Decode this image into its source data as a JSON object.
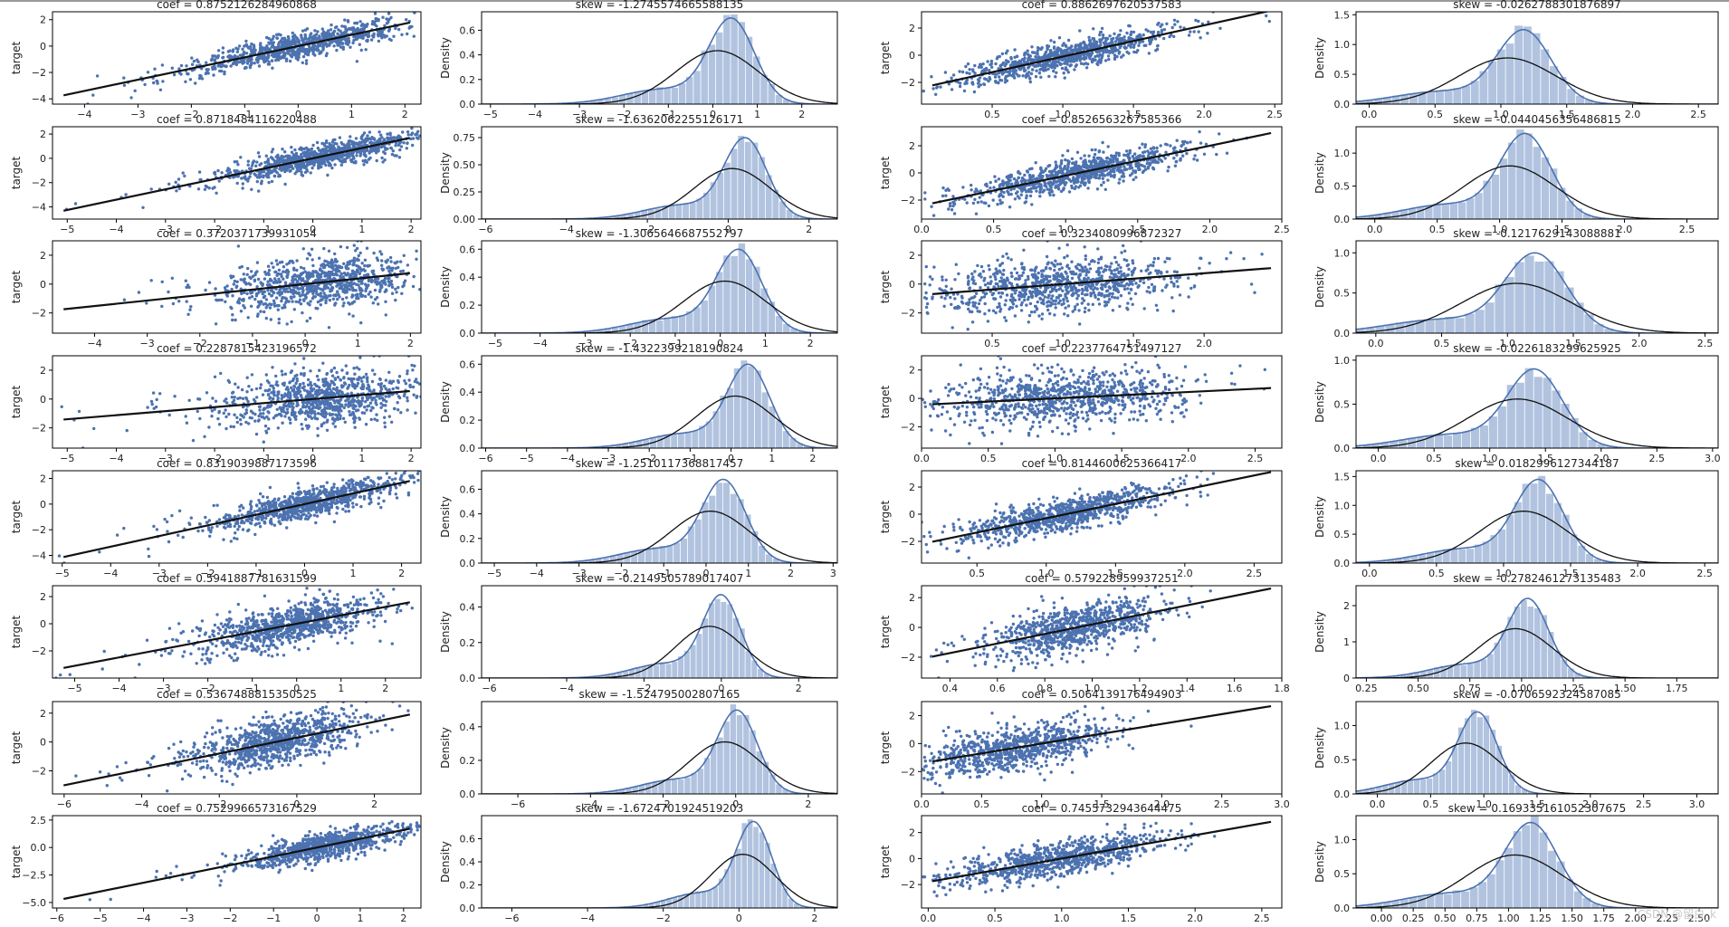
{
  "colors": {
    "scatter": "#4c72b0",
    "hist": "#a9bcdb",
    "kde": "#4c72b0",
    "line": "#111111",
    "axis": "#000000"
  },
  "ylabel_scatter": "target",
  "ylabel_dist": "Density",
  "watermark": "CSDN @留白_k",
  "chart_data": [
    {
      "type": "scatter",
      "title": "coef = 0.8752126284960868",
      "xlim": [
        -4.6,
        2.3
      ],
      "ylim": [
        -4.4,
        2.6
      ],
      "xticks": [
        -4,
        -3,
        -2,
        -1,
        0,
        1,
        2
      ],
      "yticks": [
        -4,
        -2,
        0,
        2
      ],
      "xmean": 0.1,
      "xsd": 1.0,
      "slope": 0.85,
      "intercept": 0,
      "noise": 0.5,
      "grid": false
    },
    {
      "type": "distribution",
      "title": "skew = -1.2745574665588135",
      "xlim": [
        -5.2,
        2.8
      ],
      "ylim": [
        0,
        0.75
      ],
      "xticks": [
        -5,
        -4,
        -3,
        -2,
        -1,
        0,
        1,
        2
      ],
      "yticks": [
        0,
        0.2,
        0.4,
        0.6
      ],
      "mu": 0.1,
      "sd": 0.93,
      "peak": 0.7,
      "grid": false
    },
    {
      "type": "scatter",
      "title": "coef = 0.8862697620537583",
      "xlim": [
        0.0,
        2.55
      ],
      "ylim": [
        -3.6,
        3.2
      ],
      "xticks": [
        0.5,
        1.0,
        1.5,
        2.0,
        2.5
      ],
      "yticks": [
        -2,
        0,
        2
      ],
      "xmean": 1.05,
      "xsd": 0.37,
      "slope": 2.3,
      "intercept": -2.4,
      "noise": 0.5,
      "grid": false
    },
    {
      "type": "distribution",
      "title": "skew = -0.0262788301876897",
      "xlim": [
        -0.1,
        2.65
      ],
      "ylim": [
        0,
        1.55
      ],
      "xticks": [
        0.0,
        0.5,
        1.0,
        1.5,
        2.0,
        2.5
      ],
      "yticks": [
        0,
        0.5,
        1.0,
        1.5
      ],
      "mu": 1.05,
      "sd": 0.37,
      "peak": 1.25,
      "grid": false
    },
    {
      "type": "scatter",
      "title": "coef = 0.8718484116220488",
      "xlim": [
        -5.3,
        2.2
      ],
      "ylim": [
        -5.0,
        2.6
      ],
      "xticks": [
        -5,
        -4,
        -3,
        -2,
        -1,
        0,
        1,
        2
      ],
      "yticks": [
        -4,
        -2,
        0,
        2
      ],
      "xmean": 0.2,
      "xsd": 0.95,
      "slope": 0.85,
      "intercept": 0,
      "noise": 0.5,
      "grid": false
    },
    {
      "type": "distribution",
      "title": "skew = -1.6362062255126171",
      "xlim": [
        -6.1,
        2.7
      ],
      "ylim": [
        0,
        0.85
      ],
      "xticks": [
        -6,
        -4,
        -2,
        0,
        2
      ],
      "yticks": [
        0,
        0.25,
        0.5,
        0.75
      ],
      "mu": 0.1,
      "sd": 0.95,
      "peak": 0.75,
      "grid": false
    },
    {
      "type": "scatter",
      "title": "coef = 0.8526563267585366",
      "xlim": [
        0.0,
        2.5
      ],
      "ylim": [
        -3.4,
        3.4
      ],
      "xticks": [
        0.0,
        0.5,
        1.0,
        1.5,
        2.0,
        2.5
      ],
      "yticks": [
        -2,
        0,
        2
      ],
      "xmean": 1.1,
      "xsd": 0.35,
      "slope": 2.2,
      "intercept": -2.4,
      "noise": 0.55,
      "grid": false
    },
    {
      "type": "distribution",
      "title": "skew = -0.0440456356486815",
      "xlim": [
        -0.15,
        2.75
      ],
      "ylim": [
        0,
        1.4
      ],
      "xticks": [
        0.0,
        0.5,
        1.0,
        1.5,
        2.0,
        2.5
      ],
      "yticks": [
        0,
        0.5,
        1.0
      ],
      "mu": 1.08,
      "sd": 0.37,
      "peak": 1.3,
      "grid": false
    },
    {
      "type": "scatter",
      "title": "coef = 0.3720371739931054",
      "xlim": [
        -4.8,
        2.2
      ],
      "ylim": [
        -3.4,
        3.0
      ],
      "xticks": [
        -4,
        -3,
        -2,
        -1,
        0,
        1,
        2
      ],
      "yticks": [
        -2,
        0,
        2
      ],
      "xmean": 0.3,
      "xsd": 0.9,
      "slope": 0.38,
      "intercept": 0,
      "noise": 0.9,
      "grid": false
    },
    {
      "type": "distribution",
      "title": "skew = -1.3065646687552797",
      "xlim": [
        -5.3,
        2.6
      ],
      "ylim": [
        0,
        0.66
      ],
      "xticks": [
        -5,
        -4,
        -3,
        -2,
        -1,
        0,
        1,
        2
      ],
      "yticks": [
        0,
        0.2,
        0.4,
        0.6
      ],
      "mu": 0.1,
      "sd": 0.92,
      "peak": 0.6,
      "grid": false
    },
    {
      "type": "scatter",
      "title": "coef = 0.3234080996872327",
      "xlim": [
        0.0,
        2.55
      ],
      "ylim": [
        -3.4,
        3.0
      ],
      "xticks": [
        0.5,
        1.0,
        1.5,
        2.0
      ],
      "yticks": [
        -2,
        0,
        2
      ],
      "xmean": 1.0,
      "xsd": 0.42,
      "slope": 0.75,
      "intercept": -0.75,
      "noise": 0.95,
      "grid": false
    },
    {
      "type": "distribution",
      "title": "skew = -0.1217629143088881",
      "xlim": [
        -0.15,
        2.6
      ],
      "ylim": [
        0,
        1.15
      ],
      "xticks": [
        0.0,
        0.5,
        1.0,
        1.5,
        2.0,
        2.5
      ],
      "yticks": [
        0,
        0.5,
        1.0
      ],
      "mu": 1.07,
      "sd": 0.42,
      "peak": 1.0,
      "grid": false
    },
    {
      "type": "scatter",
      "title": "coef = 0.2287815423196572",
      "xlim": [
        -5.3,
        2.2
      ],
      "ylim": [
        -3.4,
        3.0
      ],
      "xticks": [
        -5,
        -4,
        -3,
        -2,
        -1,
        0,
        1,
        2
      ],
      "yticks": [
        -2,
        0,
        2
      ],
      "xmean": 0.3,
      "xsd": 0.95,
      "slope": 0.28,
      "intercept": 0,
      "noise": 0.95,
      "grid": false
    },
    {
      "type": "distribution",
      "title": "skew = -1.4322399218190824",
      "xlim": [
        -6.1,
        2.6
      ],
      "ylim": [
        0,
        0.66
      ],
      "xticks": [
        -6,
        -5,
        -4,
        -3,
        -2,
        -1,
        0,
        1,
        2
      ],
      "yticks": [
        0,
        0.2,
        0.4,
        0.6
      ],
      "mu": 0.1,
      "sd": 0.95,
      "peak": 0.6,
      "grid": false
    },
    {
      "type": "scatter",
      "title": "coef = 0.2237764751497127",
      "xlim": [
        0.0,
        2.7
      ],
      "ylim": [
        -3.5,
        3.0
      ],
      "xticks": [
        0.0,
        0.5,
        1.0,
        1.5,
        2.0,
        2.5
      ],
      "yticks": [
        -2,
        0,
        2
      ],
      "xmean": 1.1,
      "xsd": 0.45,
      "slope": 0.45,
      "intercept": -0.45,
      "noise": 0.95,
      "grid": false
    },
    {
      "type": "distribution",
      "title": "skew = -0.0226183299625925",
      "xlim": [
        -0.2,
        3.05
      ],
      "ylim": [
        0,
        1.05
      ],
      "xticks": [
        0.0,
        0.5,
        1.0,
        1.5,
        2.0,
        2.5,
        3.0
      ],
      "yticks": [
        0,
        0.5,
        1.0
      ],
      "mu": 1.25,
      "sd": 0.45,
      "peak": 0.9,
      "grid": false
    },
    {
      "type": "scatter",
      "title": "coef = 0.8319039887173596",
      "xlim": [
        -5.2,
        2.4
      ],
      "ylim": [
        -4.6,
        2.6
      ],
      "xticks": [
        -5,
        -4,
        -3,
        -2,
        -1,
        0,
        1,
        2
      ],
      "yticks": [
        -4,
        -2,
        0,
        2
      ],
      "xmean": 0.2,
      "xsd": 0.95,
      "slope": 0.83,
      "intercept": 0,
      "noise": 0.55,
      "grid": false
    },
    {
      "type": "distribution",
      "title": "skew = -1.2510117368817457",
      "xlim": [
        -5.3,
        3.1
      ],
      "ylim": [
        0,
        0.75
      ],
      "xticks": [
        -5,
        -4,
        -3,
        -2,
        -1,
        0,
        1,
        2,
        3
      ],
      "yticks": [
        0,
        0.2,
        0.4,
        0.6
      ],
      "mu": 0.1,
      "sd": 0.93,
      "peak": 0.68,
      "grid": false
    },
    {
      "type": "scatter",
      "title": "coef = 0.8144600625366417",
      "xlim": [
        0.1,
        2.7
      ],
      "ylim": [
        -3.6,
        3.2
      ],
      "xticks": [
        0.5,
        1.0,
        1.5,
        2.0,
        2.5
      ],
      "yticks": [
        -2,
        0,
        2
      ],
      "xmean": 1.15,
      "xsd": 0.38,
      "slope": 2.1,
      "intercept": -2.4,
      "noise": 0.6,
      "grid": false
    },
    {
      "type": "distribution",
      "title": "skew = 0.0182996127344187",
      "xlim": [
        -0.1,
        2.6
      ],
      "ylim": [
        0,
        1.6
      ],
      "xticks": [
        0.0,
        0.5,
        1.0,
        1.5,
        2.0,
        2.5
      ],
      "yticks": [
        0,
        0.5,
        1.0,
        1.5
      ],
      "mu": 1.15,
      "sd": 0.33,
      "peak": 1.45,
      "grid": false
    },
    {
      "type": "scatter",
      "title": "coef = 0.5941887781631599",
      "xlim": [
        -5.5,
        2.8
      ],
      "ylim": [
        -4.0,
        2.8
      ],
      "xticks": [
        -5,
        -4,
        -3,
        -2,
        -1,
        0,
        1,
        2
      ],
      "yticks": [
        -2,
        0,
        2
      ],
      "xmean": -0.1,
      "xsd": 0.95,
      "slope": 0.62,
      "intercept": 0,
      "noise": 0.8,
      "grid": false
    },
    {
      "type": "distribution",
      "title": "skew = -0.2149505789017407",
      "xlim": [
        -6.2,
        3.0
      ],
      "ylim": [
        0,
        0.52
      ],
      "xticks": [
        -6,
        -4,
        -2,
        0,
        2
      ],
      "yticks": [
        0,
        0.2,
        0.4
      ],
      "mu": -0.3,
      "sd": 0.88,
      "peak": 0.47,
      "grid": false
    },
    {
      "type": "scatter",
      "title": "coef = 0.579228959937251",
      "xlim": [
        0.28,
        1.8
      ],
      "ylim": [
        -3.4,
        2.8
      ],
      "xticks": [
        0.4,
        0.6,
        0.8,
        1.0,
        1.2,
        1.4,
        1.6,
        1.8
      ],
      "yticks": [
        -2,
        0,
        2
      ],
      "xmean": 0.95,
      "xsd": 0.18,
      "slope": 3.2,
      "intercept": -3.0,
      "noise": 0.8,
      "grid": false
    },
    {
      "type": "distribution",
      "title": "skew = -0.2782461273135483",
      "xlim": [
        0.2,
        1.95
      ],
      "ylim": [
        0,
        2.55
      ],
      "xticks": [
        0.25,
        0.5,
        0.75,
        1.0,
        1.25,
        1.5,
        1.75
      ],
      "yticks": [
        0,
        1,
        2
      ],
      "mu": 0.97,
      "sd": 0.18,
      "peak": 2.2,
      "grid": false
    },
    {
      "type": "scatter",
      "title": "coef = 0.5367488815350525",
      "xlim": [
        -6.3,
        3.2
      ],
      "ylim": [
        -3.6,
        2.8
      ],
      "xticks": [
        -6,
        -4,
        -2,
        0,
        2
      ],
      "yticks": [
        -2,
        0,
        2
      ],
      "xmean": -0.5,
      "xsd": 1.05,
      "slope": 0.55,
      "intercept": 0.3,
      "noise": 0.8,
      "grid": false
    },
    {
      "type": "distribution",
      "title": "skew = -1.524795002807165",
      "xlim": [
        -7.0,
        2.8
      ],
      "ylim": [
        0,
        0.55
      ],
      "xticks": [
        -6,
        -4,
        -2,
        0,
        2
      ],
      "yticks": [
        0,
        0.2,
        0.4
      ],
      "mu": -0.3,
      "sd": 1.0,
      "peak": 0.5,
      "grid": false
    },
    {
      "type": "scatter",
      "title": "coef = 0.5064139176494903",
      "xlim": [
        0.0,
        3.0
      ],
      "ylim": [
        -3.6,
        3.0
      ],
      "xticks": [
        0.0,
        0.5,
        1.0,
        1.5,
        2.0,
        2.5,
        3.0
      ],
      "yticks": [
        -2,
        0,
        2
      ],
      "xmean": 0.8,
      "xsd": 0.38,
      "slope": 1.4,
      "intercept": -1.4,
      "noise": 0.8,
      "grid": false
    },
    {
      "type": "distribution",
      "title": "skew = -0.0706592324587085",
      "xlim": [
        -0.2,
        3.2
      ],
      "ylim": [
        0,
        1.35
      ],
      "xticks": [
        0.0,
        0.5,
        1.0,
        1.5,
        2.0,
        2.5,
        3.0
      ],
      "yticks": [
        0,
        0.5,
        1.0
      ],
      "mu": 0.83,
      "sd": 0.33,
      "peak": 1.2,
      "grid": false
    },
    {
      "type": "scatter",
      "title": "coef = 0.7529966573167529",
      "xlim": [
        -6.1,
        2.4
      ],
      "ylim": [
        -5.5,
        2.9
      ],
      "xticks": [
        -6,
        -5,
        -4,
        -3,
        -2,
        -1,
        0,
        1,
        2
      ],
      "yticks": [
        -5.0,
        -2.5,
        0.0,
        2.5
      ],
      "xmean": 0.2,
      "xsd": 0.9,
      "slope": 0.8,
      "intercept": 0,
      "noise": 0.6,
      "grid": false
    },
    {
      "type": "distribution",
      "title": "skew = -1.6724701924519203",
      "xlim": [
        -6.8,
        2.6
      ],
      "ylim": [
        0,
        0.8
      ],
      "xticks": [
        -6,
        -4,
        -2,
        0,
        2
      ],
      "yticks": [
        0,
        0.2,
        0.4,
        0.6
      ],
      "mu": 0.1,
      "sd": 0.85,
      "peak": 0.75,
      "grid": false
    },
    {
      "type": "scatter",
      "title": "coef = 0.7455732943644475",
      "xlim": [
        -0.05,
        2.65
      ],
      "ylim": [
        -3.8,
        3.3
      ],
      "xticks": [
        0.0,
        0.5,
        1.0,
        1.5,
        2.0,
        2.5
      ],
      "yticks": [
        -2,
        0,
        2
      ],
      "xmean": 1.0,
      "xsd": 0.38,
      "slope": 1.8,
      "intercept": -1.8,
      "noise": 0.65,
      "grid": false
    },
    {
      "type": "distribution",
      "title": "skew = 0.169335161052307675",
      "xlim": [
        -0.2,
        2.65
      ],
      "ylim": [
        0,
        1.35
      ],
      "xticks": [
        0.0,
        0.25,
        0.5,
        0.75,
        1.0,
        1.25,
        1.5,
        1.75,
        2.0,
        2.25,
        2.5
      ],
      "yticks": [
        0,
        0.5,
        1.0
      ],
      "mu": 1.05,
      "sd": 0.38,
      "peak": 1.25,
      "grid": false
    }
  ]
}
